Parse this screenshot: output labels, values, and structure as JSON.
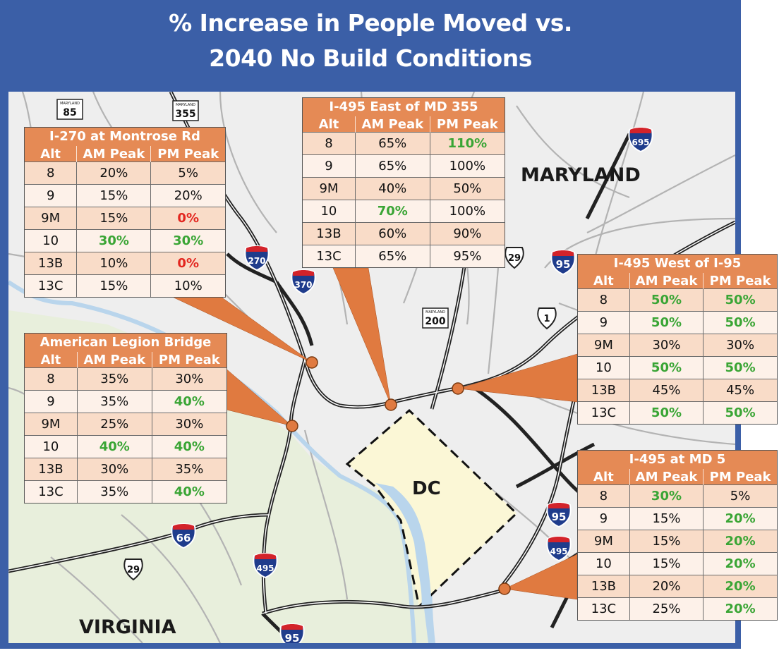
{
  "title": {
    "line1": "% Increase in People Moved vs.",
    "line2": "2040 No Build Conditions"
  },
  "colors": {
    "frame": "#3b5fa7",
    "header": "#e58a55",
    "increase_highlight": "#3aa535",
    "zero_highlight": "#e3261f",
    "dc_fill": "#fbf7d6",
    "virginia_fill": "#e8efdc"
  },
  "map_labels": {
    "maryland": "MARYLAND",
    "virginia": "VIRGINIA",
    "dc": "DC"
  },
  "route_shields": [
    {
      "type": "state",
      "state_label": "MARYLAND",
      "number": "85"
    },
    {
      "type": "state",
      "state_label": "MARYLAND",
      "number": "355"
    },
    {
      "type": "state",
      "state_label": "MARYLAND",
      "number": "200"
    },
    {
      "type": "interstate",
      "number": "695"
    },
    {
      "type": "interstate",
      "number": "270"
    },
    {
      "type": "interstate",
      "number": "370"
    },
    {
      "type": "interstate",
      "number": "95"
    },
    {
      "type": "interstate",
      "number": "95"
    },
    {
      "type": "interstate",
      "number": "495"
    },
    {
      "type": "interstate",
      "number": "495"
    },
    {
      "type": "interstate",
      "number": "66"
    },
    {
      "type": "interstate",
      "number": "95"
    },
    {
      "type": "us",
      "number": "29"
    },
    {
      "type": "us",
      "number": "1"
    },
    {
      "type": "us",
      "number": "29"
    }
  ],
  "columns": {
    "alt": "Alt",
    "am": "AM Peak",
    "pm": "PM Peak"
  },
  "panels": [
    {
      "id": "i270",
      "title": "I-270 at Montrose Rd",
      "rows": [
        {
          "alt": "8",
          "am": "20%",
          "am_style": "b",
          "pm": "5%",
          "pm_style": "b"
        },
        {
          "alt": "9",
          "am": "15%",
          "am_style": "b",
          "pm": "20%",
          "pm_style": "b"
        },
        {
          "alt": "9M",
          "am": "15%",
          "am_style": "b",
          "pm": "0%",
          "pm_style": "r"
        },
        {
          "alt": "10",
          "am": "30%",
          "am_style": "g",
          "pm": "30%",
          "pm_style": "g"
        },
        {
          "alt": "13B",
          "am": "10%",
          "am_style": "b",
          "pm": "0%",
          "pm_style": "r"
        },
        {
          "alt": "13C",
          "am": "15%",
          "am_style": "b",
          "pm": "10%",
          "pm_style": "b"
        }
      ]
    },
    {
      "id": "i495e355",
      "title": "I-495 East of MD 355",
      "rows": [
        {
          "alt": "8",
          "am": "65%",
          "am_style": "b",
          "pm": "110%",
          "pm_style": "g"
        },
        {
          "alt": "9",
          "am": "65%",
          "am_style": "b",
          "pm": "100%",
          "pm_style": "b"
        },
        {
          "alt": "9M",
          "am": "40%",
          "am_style": "b",
          "pm": "50%",
          "pm_style": "b"
        },
        {
          "alt": "10",
          "am": "70%",
          "am_style": "g",
          "pm": "100%",
          "pm_style": "b"
        },
        {
          "alt": "13B",
          "am": "60%",
          "am_style": "b",
          "pm": "90%",
          "pm_style": "b"
        },
        {
          "alt": "13C",
          "am": "65%",
          "am_style": "b",
          "pm": "95%",
          "pm_style": "b"
        }
      ]
    },
    {
      "id": "alb",
      "title": "American Legion Bridge",
      "rows": [
        {
          "alt": "8",
          "am": "35%",
          "am_style": "b",
          "pm": "30%",
          "pm_style": "b"
        },
        {
          "alt": "9",
          "am": "35%",
          "am_style": "b",
          "pm": "40%",
          "pm_style": "g"
        },
        {
          "alt": "9M",
          "am": "25%",
          "am_style": "b",
          "pm": "30%",
          "pm_style": "b"
        },
        {
          "alt": "10",
          "am": "40%",
          "am_style": "g",
          "pm": "40%",
          "pm_style": "g"
        },
        {
          "alt": "13B",
          "am": "30%",
          "am_style": "b",
          "pm": "35%",
          "pm_style": "b"
        },
        {
          "alt": "13C",
          "am": "35%",
          "am_style": "b",
          "pm": "40%",
          "pm_style": "g"
        }
      ]
    },
    {
      "id": "i495w95",
      "title": "I-495 West of I-95",
      "rows": [
        {
          "alt": "8",
          "am": "50%",
          "am_style": "g",
          "pm": "50%",
          "pm_style": "g"
        },
        {
          "alt": "9",
          "am": "50%",
          "am_style": "g",
          "pm": "50%",
          "pm_style": "g"
        },
        {
          "alt": "9M",
          "am": "30%",
          "am_style": "b",
          "pm": "30%",
          "pm_style": "b"
        },
        {
          "alt": "10",
          "am": "50%",
          "am_style": "g",
          "pm": "50%",
          "pm_style": "g"
        },
        {
          "alt": "13B",
          "am": "45%",
          "am_style": "b",
          "pm": "45%",
          "pm_style": "b"
        },
        {
          "alt": "13C",
          "am": "50%",
          "am_style": "g",
          "pm": "50%",
          "pm_style": "g"
        }
      ]
    },
    {
      "id": "i495md5",
      "title": "I-495 at MD 5",
      "rows": [
        {
          "alt": "8",
          "am": "30%",
          "am_style": "g",
          "pm": "5%",
          "pm_style": "b"
        },
        {
          "alt": "9",
          "am": "15%",
          "am_style": "b",
          "pm": "20%",
          "pm_style": "g"
        },
        {
          "alt": "9M",
          "am": "15%",
          "am_style": "b",
          "pm": "20%",
          "pm_style": "g"
        },
        {
          "alt": "10",
          "am": "15%",
          "am_style": "b",
          "pm": "20%",
          "pm_style": "g"
        },
        {
          "alt": "13B",
          "am": "20%",
          "am_style": "b",
          "pm": "20%",
          "pm_style": "g"
        },
        {
          "alt": "13C",
          "am": "25%",
          "am_style": "b",
          "pm": "20%",
          "pm_style": "g"
        }
      ]
    }
  ]
}
